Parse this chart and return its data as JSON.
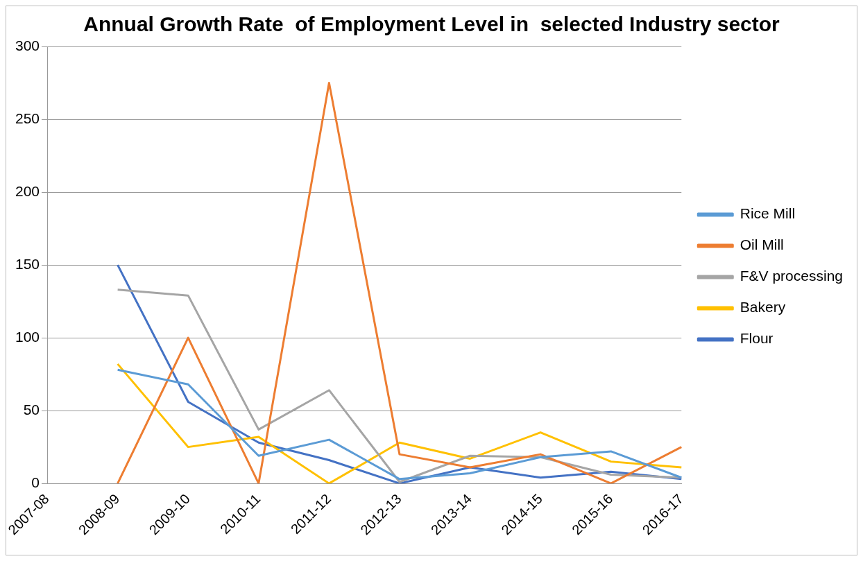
{
  "chart_data": {
    "type": "line",
    "title": "Annual Growth Rate  of Employment Level in  selected Industry sector",
    "categories": [
      "2007-08",
      "2008-09",
      "2009-10",
      "2010-11",
      "2011-12",
      "2012-13",
      "2013-14",
      "2014-15",
      "2015-16",
      "2016-17"
    ],
    "series": [
      {
        "name": "Rice Mill",
        "color": "#5b9bd5",
        "values": [
          null,
          78,
          68,
          19,
          30,
          3,
          7,
          18,
          22,
          4
        ]
      },
      {
        "name": "Oil Mill",
        "color": "#ed7d31",
        "values": [
          null,
          0,
          100,
          0,
          275,
          20,
          11,
          20,
          0,
          25
        ]
      },
      {
        "name": "F&V processing",
        "color": "#a5a5a5",
        "values": [
          null,
          133,
          129,
          37,
          64,
          1,
          19,
          18,
          6,
          4
        ]
      },
      {
        "name": "Bakery",
        "color": "#ffc000",
        "values": [
          null,
          82,
          25,
          32,
          0,
          28,
          17,
          35,
          15,
          11
        ]
      },
      {
        "name": "Flour",
        "color": "#4472c4",
        "values": [
          null,
          150,
          56,
          28,
          16,
          0,
          11,
          4,
          8,
          3
        ]
      }
    ],
    "ylim": [
      0,
      300
    ],
    "yticks": [
      0,
      50,
      100,
      150,
      200,
      250,
      300
    ],
    "grid": "y",
    "legend": "right",
    "marker": "none",
    "line_style": "solid"
  }
}
